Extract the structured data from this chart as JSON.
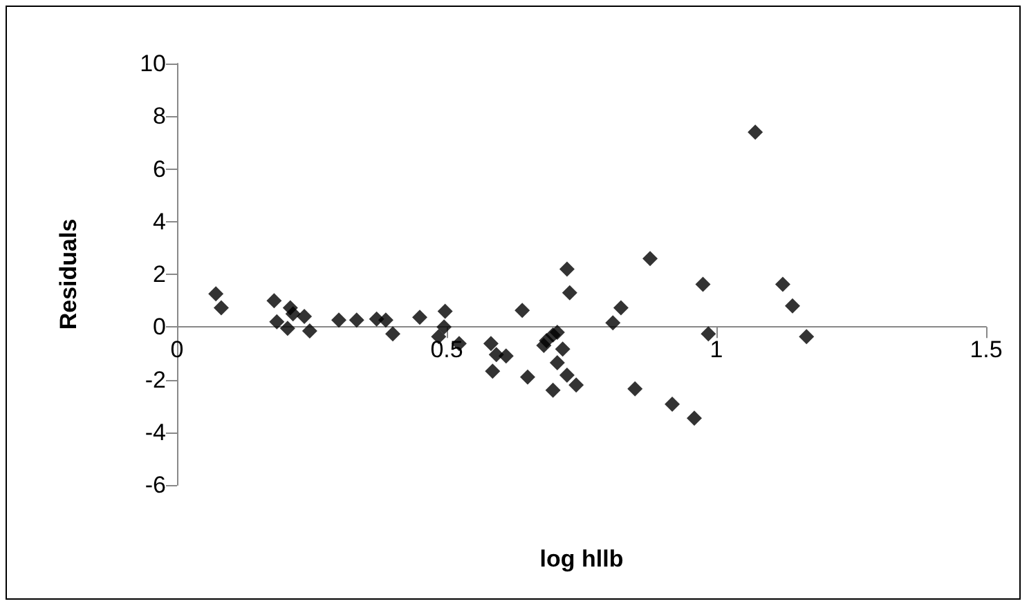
{
  "chart_data": {
    "type": "scatter",
    "xlabel": "log hllb",
    "ylabel": "Residuals",
    "xlim": [
      0,
      1.5
    ],
    "xticks": [
      0,
      0.5,
      1,
      1.5
    ],
    "ylim": [
      -6,
      10
    ],
    "yticks": [
      -6,
      -4,
      -2,
      0,
      2,
      4,
      6,
      8,
      10
    ],
    "grid": false,
    "marker": "diamond",
    "series": [
      {
        "color": "#000000",
        "x": [
          0.072,
          0.082,
          0.18,
          0.185,
          0.21,
          0.205,
          0.215,
          0.236,
          0.246,
          0.3,
          0.333,
          0.37,
          0.387,
          0.4,
          0.45,
          0.497,
          0.485,
          0.495,
          0.523,
          0.582,
          0.592,
          0.61,
          0.585,
          0.64,
          0.65,
          0.723,
          0.728,
          0.685,
          0.697,
          0.705,
          0.715,
          0.705,
          0.723,
          0.74,
          0.697,
          0.68,
          0.823,
          0.808,
          0.877,
          0.975,
          0.985,
          1.072,
          1.123,
          1.141,
          1.167,
          0.849,
          0.918,
          0.959
        ],
        "values": [
          1.26,
          0.73,
          1.0,
          0.2,
          0.73,
          -0.05,
          0.5,
          0.4,
          -0.15,
          0.26,
          0.26,
          0.3,
          0.26,
          -0.26,
          0.37,
          0.6,
          -0.37,
          0.0,
          -0.63,
          -0.63,
          -1.05,
          -1.1,
          -1.68,
          0.63,
          -1.9,
          2.2,
          1.3,
          -0.52,
          -0.3,
          -0.2,
          -0.84,
          -1.36,
          -1.83,
          -2.2,
          -2.4,
          -0.7,
          0.73,
          0.16,
          2.6,
          1.62,
          -0.26,
          7.4,
          1.62,
          0.8,
          -0.37,
          -2.35,
          -2.93,
          -3.46
        ]
      }
    ]
  }
}
